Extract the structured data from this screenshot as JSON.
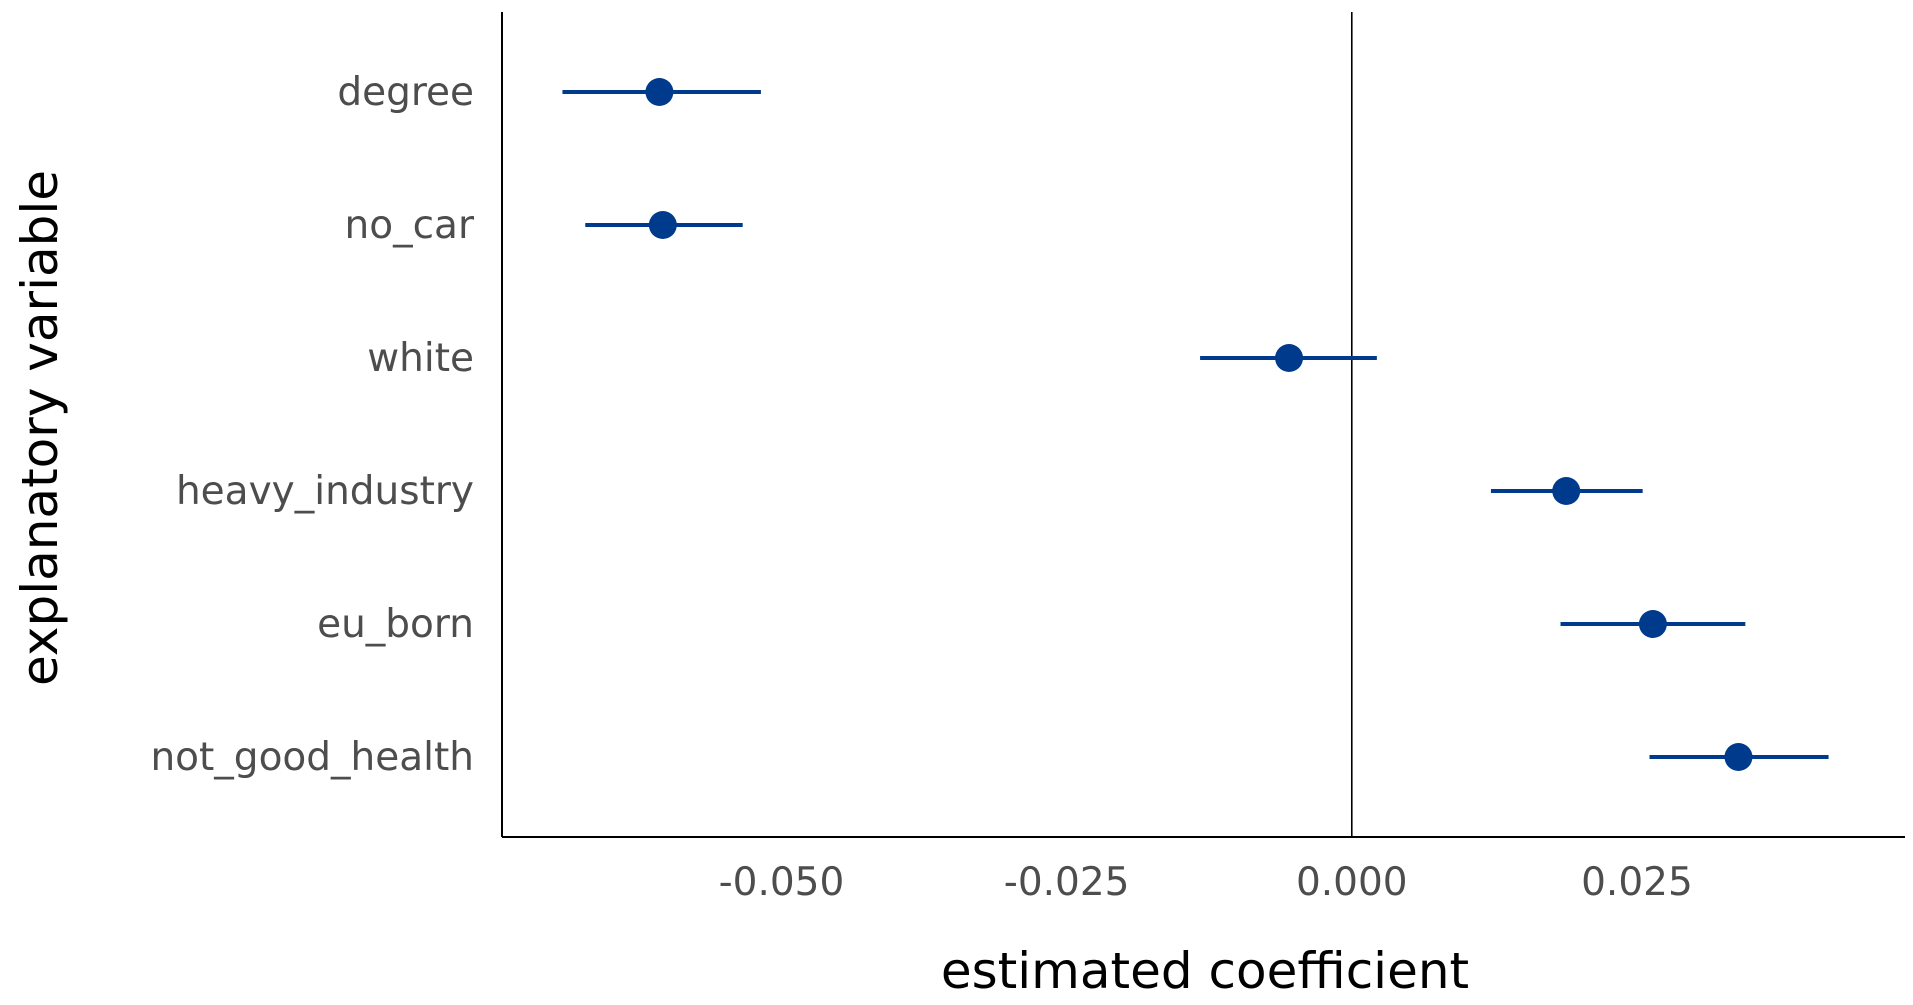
{
  "chart_data": {
    "type": "scatter",
    "subtype": "coefficient-plot",
    "title": "",
    "xlabel": "estimated coefficient",
    "ylabel": "explanatory variable",
    "xlim": [
      -0.0745,
      0.0485
    ],
    "xticks": [
      -0.05,
      -0.025,
      0.0,
      0.025
    ],
    "xtick_labels": [
      "-0.050",
      "-0.025",
      "0.000",
      "0.025"
    ],
    "reference_line_x": 0,
    "grid": false,
    "legend": "none",
    "color": "#003a8c",
    "categories": [
      "degree",
      "no_car",
      "white",
      "heavy_industry",
      "eu_born",
      "not_good_health"
    ],
    "estimates": [
      -0.0607,
      -0.0604,
      -0.0055,
      0.0188,
      0.0264,
      0.0339
    ],
    "lower": [
      -0.0692,
      -0.0672,
      -0.0133,
      0.0122,
      0.0183,
      0.0261
    ],
    "upper": [
      -0.0518,
      -0.0534,
      0.0022,
      0.0255,
      0.0345,
      0.0418
    ]
  }
}
